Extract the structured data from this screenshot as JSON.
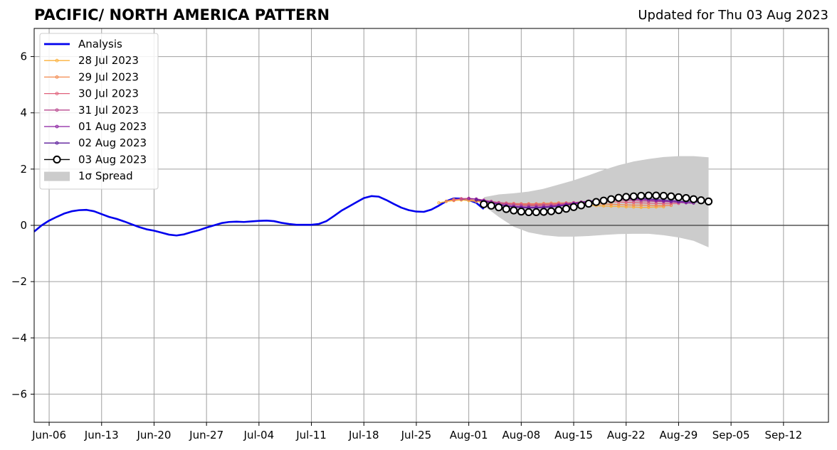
{
  "header": {
    "title": "PACIFIC/ NORTH AMERICA PATTERN",
    "subtitle": "Updated for Thu 03 Aug 2023"
  },
  "colors": {
    "analysis": "#0000ee",
    "spread": "#cccccc",
    "grid": "#a0a0a0",
    "zero_line": "#555555",
    "forecast_0728": "#fbb03b",
    "forecast_0729": "#f38a4e",
    "forecast_0730": "#e0607a",
    "forecast_0731": "#b8488f",
    "forecast_0801": "#8a1fa0",
    "forecast_0802": "#5a1a9a",
    "forecast_0803": "#000000"
  },
  "chart_data": {
    "type": "line",
    "title": "PACIFIC/ NORTH AMERICA PATTERN",
    "xlabel": "",
    "ylabel": "",
    "xlim": [
      "2023-06-04",
      "2023-09-18"
    ],
    "ylim": [
      -7,
      7
    ],
    "grid": true,
    "legend_position": "top-left",
    "x_ticks": [
      "Jun-06",
      "Jun-13",
      "Jun-20",
      "Jun-27",
      "Jul-04",
      "Jul-11",
      "Jul-18",
      "Jul-25",
      "Aug-01",
      "Aug-08",
      "Aug-15",
      "Aug-22",
      "Aug-29",
      "Sep-05",
      "Sep-12"
    ],
    "x_tick_dates": [
      "2023-06-06",
      "2023-06-13",
      "2023-06-20",
      "2023-06-27",
      "2023-07-04",
      "2023-07-11",
      "2023-07-18",
      "2023-07-25",
      "2023-08-01",
      "2023-08-08",
      "2023-08-15",
      "2023-08-22",
      "2023-08-29",
      "2023-09-05",
      "2023-09-12"
    ],
    "y_ticks": [
      -6,
      -4,
      -2,
      0,
      2,
      4,
      6
    ],
    "y_tick_labels": [
      "−6",
      "−4",
      "−2",
      "0",
      "2",
      "4",
      "6"
    ],
    "legend": [
      {
        "label": "Analysis",
        "style": "thick-line",
        "color_key": "analysis"
      },
      {
        "label": "28 Jul 2023",
        "style": "dot-line",
        "color_key": "forecast_0728"
      },
      {
        "label": "29 Jul 2023",
        "style": "dot-line",
        "color_key": "forecast_0729"
      },
      {
        "label": "30 Jul 2023",
        "style": "dot-line",
        "color_key": "forecast_0730"
      },
      {
        "label": "31 Jul 2023",
        "style": "dot-line",
        "color_key": "forecast_0731"
      },
      {
        "label": "01 Aug 2023",
        "style": "dot-line",
        "color_key": "forecast_0801"
      },
      {
        "label": "02 Aug 2023",
        "style": "dot-line",
        "color_key": "forecast_0802"
      },
      {
        "label": "03 Aug 2023",
        "style": "circle-line",
        "color_key": "forecast_0803"
      },
      {
        "label": "1σ Spread",
        "style": "patch",
        "color_key": "spread"
      }
    ],
    "analysis": {
      "x": [
        "2023-06-04",
        "2023-06-05",
        "2023-06-06",
        "2023-06-07",
        "2023-06-08",
        "2023-06-09",
        "2023-06-10",
        "2023-06-11",
        "2023-06-12",
        "2023-06-13",
        "2023-06-14",
        "2023-06-15",
        "2023-06-16",
        "2023-06-17",
        "2023-06-18",
        "2023-06-19",
        "2023-06-20",
        "2023-06-21",
        "2023-06-22",
        "2023-06-23",
        "2023-06-24",
        "2023-06-25",
        "2023-06-26",
        "2023-06-27",
        "2023-06-28",
        "2023-06-29",
        "2023-06-30",
        "2023-07-01",
        "2023-07-02",
        "2023-07-03",
        "2023-07-04",
        "2023-07-05",
        "2023-07-06",
        "2023-07-07",
        "2023-07-08",
        "2023-07-09",
        "2023-07-10",
        "2023-07-11",
        "2023-07-12",
        "2023-07-13",
        "2023-07-14",
        "2023-07-15",
        "2023-07-16",
        "2023-07-17",
        "2023-07-18",
        "2023-07-19",
        "2023-07-20",
        "2023-07-21",
        "2023-07-22",
        "2023-07-23",
        "2023-07-24",
        "2023-07-25",
        "2023-07-26",
        "2023-07-27",
        "2023-07-28",
        "2023-07-29",
        "2023-07-30",
        "2023-07-31",
        "2023-08-01",
        "2023-08-02",
        "2023-08-03"
      ],
      "y": [
        -0.22,
        0.0,
        0.17,
        0.3,
        0.42,
        0.5,
        0.54,
        0.55,
        0.5,
        0.4,
        0.3,
        0.23,
        0.14,
        0.04,
        -0.06,
        -0.14,
        -0.19,
        -0.26,
        -0.33,
        -0.36,
        -0.32,
        -0.24,
        -0.17,
        -0.08,
        0.0,
        0.08,
        0.12,
        0.13,
        0.12,
        0.14,
        0.16,
        0.17,
        0.15,
        0.09,
        0.05,
        0.02,
        0.02,
        0.02,
        0.05,
        0.15,
        0.33,
        0.52,
        0.67,
        0.82,
        0.97,
        1.04,
        1.02,
        0.9,
        0.76,
        0.63,
        0.54,
        0.49,
        0.48,
        0.56,
        0.7,
        0.86,
        0.96,
        0.95,
        0.9,
        0.8,
        0.58
      ]
    },
    "spread": {
      "x": [
        "2023-08-03",
        "2023-08-05",
        "2023-08-07",
        "2023-08-09",
        "2023-08-11",
        "2023-08-13",
        "2023-08-15",
        "2023-08-17",
        "2023-08-19",
        "2023-08-21",
        "2023-08-23",
        "2023-08-25",
        "2023-08-27",
        "2023-08-29",
        "2023-08-31",
        "2023-09-02"
      ],
      "upper": [
        1.0,
        1.1,
        1.14,
        1.2,
        1.3,
        1.45,
        1.6,
        1.78,
        1.97,
        2.14,
        2.27,
        2.36,
        2.43,
        2.46,
        2.46,
        2.42
      ],
      "lower": [
        0.7,
        0.3,
        -0.05,
        -0.25,
        -0.35,
        -0.4,
        -0.4,
        -0.38,
        -0.34,
        -0.31,
        -0.3,
        -0.3,
        -0.35,
        -0.43,
        -0.55,
        -0.78
      ]
    },
    "series": [
      {
        "name": "28 Jul 2023",
        "color_key": "forecast_0728",
        "start": "2023-07-28",
        "values": [
          0.8,
          0.85,
          0.88,
          0.9,
          0.88,
          0.85,
          0.82,
          0.8,
          0.78,
          0.76,
          0.75,
          0.74,
          0.73,
          0.72,
          0.72,
          0.72,
          0.72,
          0.72,
          0.72,
          0.72,
          0.71,
          0.7,
          0.69,
          0.68,
          0.67,
          0.66,
          0.65,
          0.64,
          0.64,
          0.65,
          0.66
        ]
      },
      {
        "name": "29 Jul 2023",
        "color_key": "forecast_0729",
        "start": "2023-07-29",
        "values": [
          0.86,
          0.92,
          0.94,
          0.92,
          0.88,
          0.84,
          0.82,
          0.8,
          0.79,
          0.78,
          0.77,
          0.77,
          0.77,
          0.78,
          0.79,
          0.8,
          0.8,
          0.8,
          0.79,
          0.78,
          0.77,
          0.76,
          0.75,
          0.74,
          0.73,
          0.72,
          0.72,
          0.71,
          0.7,
          0.7,
          0.71
        ]
      },
      {
        "name": "30 Jul 2023",
        "color_key": "forecast_0730",
        "start": "2023-07-30",
        "values": [
          0.9,
          0.95,
          0.96,
          0.93,
          0.89,
          0.85,
          0.81,
          0.79,
          0.77,
          0.76,
          0.75,
          0.75,
          0.75,
          0.76,
          0.77,
          0.79,
          0.81,
          0.83,
          0.84,
          0.85,
          0.85,
          0.84,
          0.83,
          0.82,
          0.81,
          0.8,
          0.79,
          0.78,
          0.77,
          0.77,
          0.78
        ]
      },
      {
        "name": "31 Jul 2023",
        "color_key": "forecast_0731",
        "start": "2023-07-31",
        "values": [
          0.93,
          0.96,
          0.94,
          0.9,
          0.85,
          0.8,
          0.76,
          0.73,
          0.71,
          0.7,
          0.7,
          0.71,
          0.72,
          0.74,
          0.77,
          0.8,
          0.83,
          0.86,
          0.88,
          0.89,
          0.9,
          0.9,
          0.89,
          0.88,
          0.87,
          0.86,
          0.85,
          0.84,
          0.83,
          0.82,
          0.82
        ]
      },
      {
        "name": "01 Aug 2023",
        "color_key": "forecast_0801",
        "start": "2023-08-01",
        "values": [
          0.95,
          0.93,
          0.88,
          0.82,
          0.76,
          0.71,
          0.68,
          0.66,
          0.65,
          0.65,
          0.66,
          0.68,
          0.71,
          0.74,
          0.78,
          0.82,
          0.86,
          0.89,
          0.91,
          0.93,
          0.94,
          0.94,
          0.93,
          0.92,
          0.9,
          0.88,
          0.86,
          0.84,
          0.82,
          0.8,
          0.79
        ]
      },
      {
        "name": "02 Aug 2023",
        "color_key": "forecast_0802",
        "start": "2023-08-02",
        "values": [
          0.9,
          0.86,
          0.8,
          0.74,
          0.69,
          0.65,
          0.63,
          0.62,
          0.62,
          0.63,
          0.65,
          0.68,
          0.72,
          0.76,
          0.8,
          0.84,
          0.88,
          0.91,
          0.93,
          0.95,
          0.96,
          0.96,
          0.95,
          0.94,
          0.92,
          0.9,
          0.88,
          0.86,
          0.84,
          0.83,
          0.83
        ]
      },
      {
        "name": "03 Aug 2023",
        "color_key": "forecast_0803",
        "start": "2023-08-03",
        "values": [
          0.75,
          0.7,
          0.64,
          0.58,
          0.53,
          0.49,
          0.47,
          0.47,
          0.48,
          0.5,
          0.54,
          0.59,
          0.65,
          0.71,
          0.77,
          0.83,
          0.88,
          0.93,
          0.98,
          1.01,
          1.03,
          1.05,
          1.06,
          1.06,
          1.05,
          1.03,
          1.0,
          0.97,
          0.93,
          0.89,
          0.85
        ]
      }
    ]
  }
}
